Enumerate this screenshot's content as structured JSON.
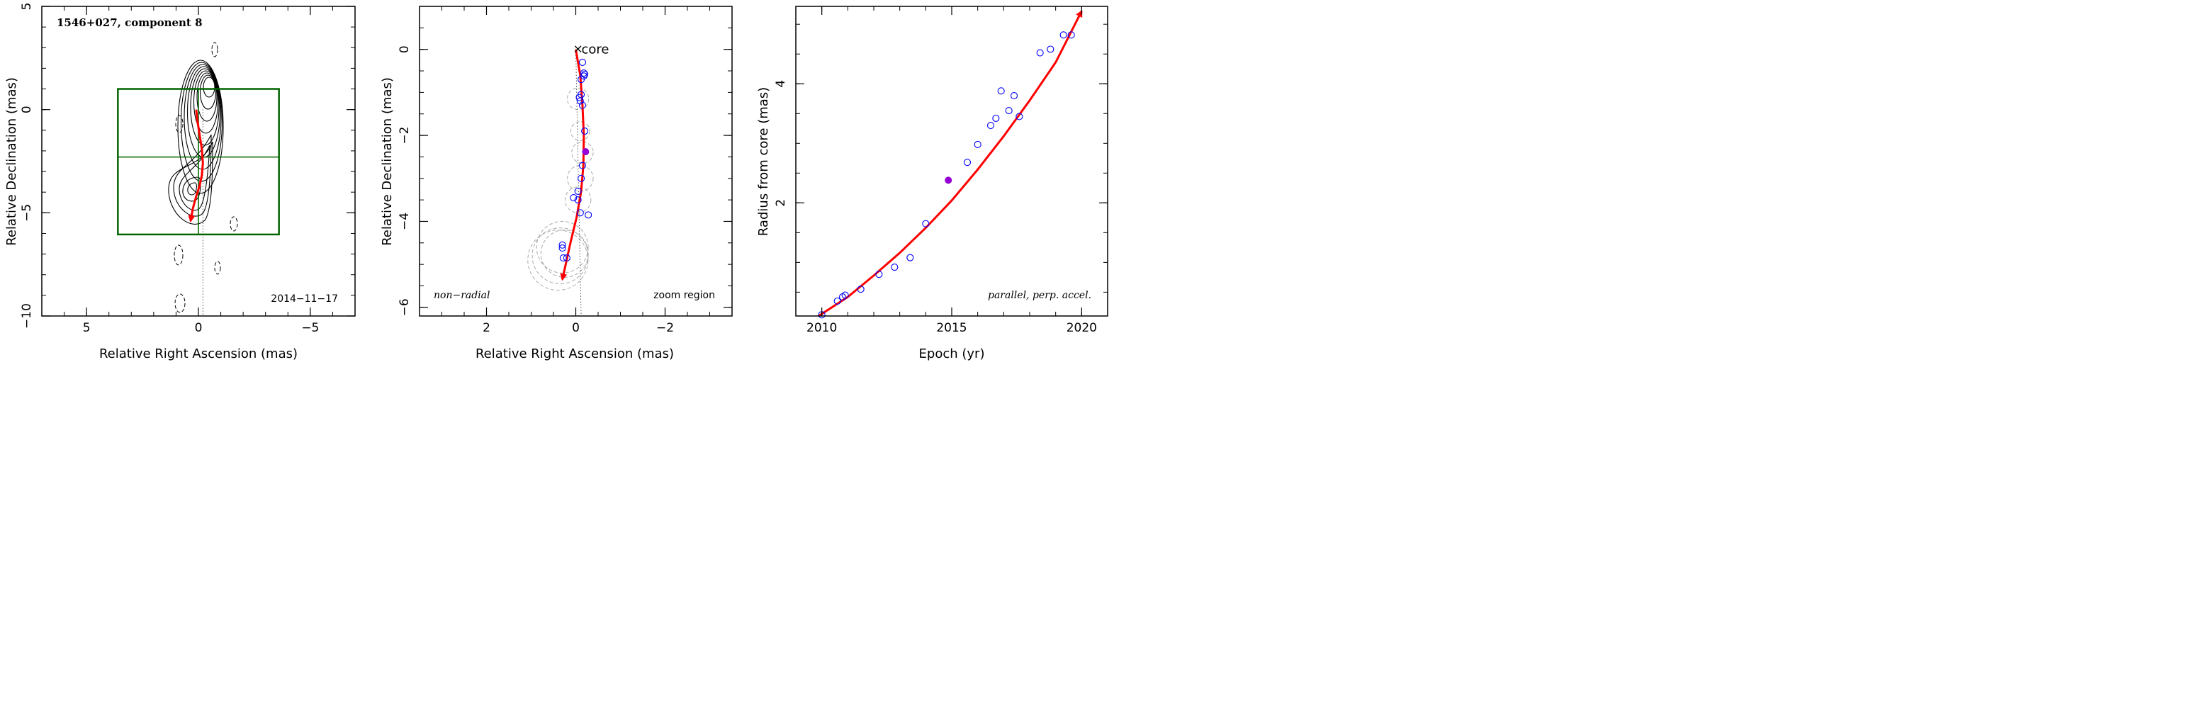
{
  "chart_data": [
    {
      "type": "scatter",
      "panel": "contour-map",
      "title": "1546+027, component 8",
      "xlabel": "Relative Right Ascension (mas)",
      "ylabel": "Relative Declination (mas)",
      "xlim": [
        7.0,
        -7.0
      ],
      "ylim": [
        -10,
        5
      ],
      "xticks": [
        5,
        0,
        -5
      ],
      "xtick_labels": [
        "5",
        "0",
        "−5"
      ],
      "yticks": [
        5,
        0,
        -5,
        -10
      ],
      "ytick_labels": [
        "5",
        "0",
        "−5",
        "−10"
      ],
      "date_label": "2014−11−17",
      "zoom_box": {
        "x": [
          3.6,
          -3.6
        ],
        "y": [
          -6.05,
          1.0
        ],
        "hline_y": -2.3,
        "vline_x": 0.0
      },
      "trajectory": {
        "x": [
          0.1,
          0.05,
          -0.05,
          -0.15,
          -0.2,
          -0.15,
          -0.05,
          0.1,
          0.25,
          0.35
        ],
        "y": [
          0.0,
          -0.5,
          -1.2,
          -1.9,
          -2.6,
          -3.2,
          -3.7,
          -4.2,
          -4.8,
          -5.4
        ]
      },
      "core_direction_line_x": -0.2,
      "colors": {
        "trajectory": "#ff0000",
        "box": "#006400",
        "contours": "#000000"
      }
    },
    {
      "type": "scatter",
      "panel": "zoom",
      "xlabel": "Relative Right Ascension (mas)",
      "ylabel": "Relative Declination (mas)",
      "xlim": [
        3.5,
        -3.5
      ],
      "ylim": [
        -6.2,
        1.0
      ],
      "xticks": [
        2,
        0,
        -2
      ],
      "xtick_labels": [
        "2",
        "0",
        "−2"
      ],
      "yticks": [
        0,
        -2,
        -4,
        -6
      ],
      "ytick_labels": [
        "0",
        "−2",
        "−4",
        "−6"
      ],
      "core_label": "core",
      "left_note": "non−radial",
      "right_note": "zoom region",
      "points": [
        {
          "x": -0.15,
          "y": -0.3
        },
        {
          "x": -0.18,
          "y": -0.55
        },
        {
          "x": -0.2,
          "y": -0.58
        },
        {
          "x": -0.18,
          "y": -0.62
        },
        {
          "x": -0.12,
          "y": -0.7
        },
        {
          "x": -0.12,
          "y": -1.05
        },
        {
          "x": -0.08,
          "y": -1.12
        },
        {
          "x": -0.1,
          "y": -1.2
        },
        {
          "x": -0.15,
          "y": -1.3
        },
        {
          "x": -0.2,
          "y": -1.9
        },
        {
          "x": -0.15,
          "y": -2.7
        },
        {
          "x": -0.12,
          "y": -3.0
        },
        {
          "x": -0.05,
          "y": -3.3
        },
        {
          "x": 0.05,
          "y": -3.45
        },
        {
          "x": -0.05,
          "y": -3.5
        },
        {
          "x": -0.1,
          "y": -3.8
        },
        {
          "x": -0.28,
          "y": -3.85
        },
        {
          "x": 0.3,
          "y": -4.55
        },
        {
          "x": 0.3,
          "y": -4.62
        },
        {
          "x": 0.28,
          "y": -4.85
        },
        {
          "x": 0.2,
          "y": -4.85
        }
      ],
      "highlight_point": {
        "x": -0.22,
        "y": -2.38
      },
      "circles": [
        {
          "x": -0.05,
          "y": -1.15,
          "r": 0.25
        },
        {
          "x": -0.1,
          "y": -1.9,
          "r": 0.22
        },
        {
          "x": -0.15,
          "y": -2.4,
          "r": 0.25
        },
        {
          "x": -0.1,
          "y": -3.0,
          "r": 0.3
        },
        {
          "x": -0.05,
          "y": -3.5,
          "r": 0.3
        },
        {
          "x": 0.3,
          "y": -4.6,
          "r": 0.6
        },
        {
          "x": 0.35,
          "y": -4.8,
          "r": 0.65
        },
        {
          "x": 0.4,
          "y": -4.9,
          "r": 0.7
        },
        {
          "x": 0.25,
          "y": -4.75,
          "r": 0.55
        }
      ],
      "trajectory": {
        "x": [
          0.0,
          -0.1,
          -0.15,
          -0.18,
          -0.17,
          -0.12,
          -0.02,
          0.12,
          0.3
        ],
        "y": [
          0.0,
          -0.6,
          -1.3,
          -2.0,
          -2.7,
          -3.3,
          -3.9,
          -4.5,
          -5.35
        ]
      },
      "dotted_line_x": -0.12,
      "colors": {
        "points": "#0000ff",
        "highlight": "#9400d3",
        "trajectory": "#ff0000",
        "circles": "#aaaaaa"
      }
    },
    {
      "type": "scatter",
      "panel": "radius-vs-epoch",
      "xlabel": "Epoch (yr)",
      "ylabel": "Radius from core (mas)",
      "xlim": [
        2009,
        2021
      ],
      "ylim": [
        0.1,
        5.3
      ],
      "xticks": [
        2010,
        2015,
        2020
      ],
      "xtick_labels": [
        "2010",
        "2015",
        "2020"
      ],
      "yticks": [
        2,
        4
      ],
      "ytick_labels": [
        "2",
        "4"
      ],
      "note": "parallel, perp. accel.",
      "points": [
        {
          "x": 2010.0,
          "y": 0.12
        },
        {
          "x": 2010.6,
          "y": 0.35
        },
        {
          "x": 2010.8,
          "y": 0.42
        },
        {
          "x": 2010.9,
          "y": 0.45
        },
        {
          "x": 2011.5,
          "y": 0.55
        },
        {
          "x": 2012.2,
          "y": 0.8
        },
        {
          "x": 2012.8,
          "y": 0.92
        },
        {
          "x": 2013.4,
          "y": 1.08
        },
        {
          "x": 2014.0,
          "y": 1.65
        },
        {
          "x": 2015.6,
          "y": 2.68
        },
        {
          "x": 2016.0,
          "y": 2.98
        },
        {
          "x": 2016.5,
          "y": 3.3
        },
        {
          "x": 2016.7,
          "y": 3.42
        },
        {
          "x": 2016.9,
          "y": 3.88
        },
        {
          "x": 2017.2,
          "y": 3.55
        },
        {
          "x": 2017.4,
          "y": 3.8
        },
        {
          "x": 2017.6,
          "y": 3.45
        },
        {
          "x": 2018.4,
          "y": 4.52
        },
        {
          "x": 2018.8,
          "y": 4.58
        },
        {
          "x": 2019.3,
          "y": 4.82
        },
        {
          "x": 2019.6,
          "y": 4.82
        }
      ],
      "highlight_point": {
        "x": 2014.87,
        "y": 2.38
      },
      "fit": {
        "x": [
          2009.7,
          2011,
          2012,
          2013,
          2014,
          2015,
          2016,
          2017,
          2018,
          2019,
          2020
        ],
        "y": [
          0.05,
          0.42,
          0.78,
          1.16,
          1.58,
          2.04,
          2.56,
          3.12,
          3.72,
          4.36,
          5.22
        ]
      },
      "colors": {
        "points": "#0000ff",
        "highlight": "#9400d3",
        "fit": "#ff0000"
      }
    }
  ]
}
